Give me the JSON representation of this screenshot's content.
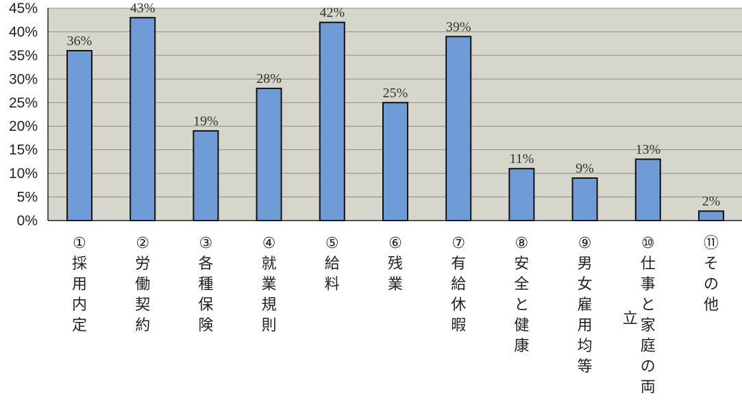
{
  "chart_data": {
    "type": "bar",
    "categories": [
      "①採用内定",
      "②労働契約",
      "③各種保険",
      "④就業規則",
      "⑤給料",
      "⑥残業",
      "⑦有給休暇",
      "⑧安全と健康",
      "⑨男女雇用均等",
      "⑩仕事と家庭の両立",
      "⑪その他"
    ],
    "values": [
      36,
      43,
      19,
      28,
      42,
      25,
      39,
      11,
      9,
      13,
      2
    ],
    "data_labels": [
      "36%",
      "43%",
      "19%",
      "28%",
      "42%",
      "25%",
      "39%",
      "11%",
      "9%",
      "13%",
      "2%"
    ],
    "y_ticks": [
      "0%",
      "5%",
      "10%",
      "15%",
      "20%",
      "25%",
      "30%",
      "35%",
      "40%",
      "45%"
    ],
    "ylim": [
      0,
      45
    ],
    "title": "",
    "xlabel": "",
    "ylabel": "",
    "grid": true,
    "legend": "none",
    "colors": {
      "bar": "#6f9bd6",
      "bar_outline": "#111111",
      "plot_background": "#d6d6cd",
      "gridline": "#8c8c84"
    }
  }
}
